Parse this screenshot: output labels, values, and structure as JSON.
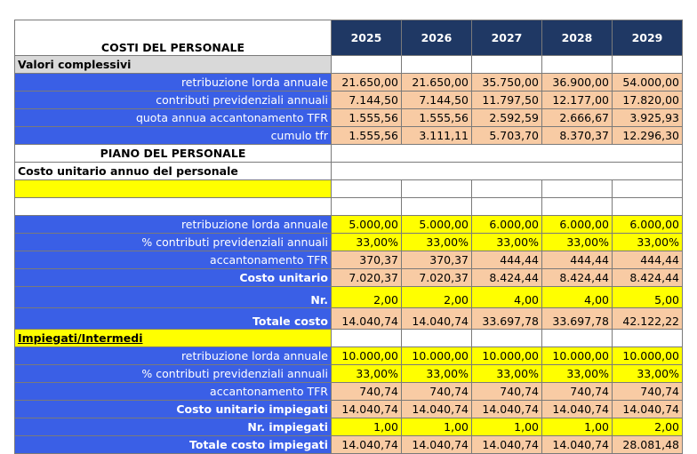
{
  "header": {
    "title": "COSTI DEL PERSONALE",
    "years": [
      "2025",
      "2026",
      "2027",
      "2028",
      "2029"
    ]
  },
  "rows": [
    {
      "kind": "section",
      "label": "Valori complessivi"
    },
    {
      "kind": "data",
      "label": "retribuzione lorda annuale",
      "fill": "peach",
      "values": [
        "21.650,00",
        "21.650,00",
        "35.750,00",
        "36.900,00",
        "54.000,00"
      ]
    },
    {
      "kind": "data",
      "label": "contributi previdenziali annuali",
      "fill": "peach",
      "values": [
        "7.144,50",
        "7.144,50",
        "11.797,50",
        "12.177,00",
        "17.820,00"
      ]
    },
    {
      "kind": "data",
      "label": "quota annua accantonamento TFR",
      "fill": "peach",
      "values": [
        "1.555,56",
        "1.555,56",
        "2.592,59",
        "2.666,67",
        "3.925,93"
      ]
    },
    {
      "kind": "data",
      "label": "cumulo tfr",
      "fill": "peach",
      "values": [
        "1.555,56",
        "3.111,11",
        "5.703,70",
        "8.370,37",
        "12.296,30"
      ]
    },
    {
      "kind": "plain-center",
      "label": "PIANO DEL PERSONALE"
    },
    {
      "kind": "plain-bold",
      "label": "Costo unitario annuo del personale"
    },
    {
      "kind": "yellowbar",
      "label": ""
    },
    {
      "kind": "blank"
    },
    {
      "kind": "data",
      "label": "retribuzione lorda annuale",
      "fill": "yel",
      "values": [
        "5.000,00",
        "5.000,00",
        "6.000,00",
        "6.000,00",
        "6.000,00"
      ]
    },
    {
      "kind": "data",
      "label": "% contributi previdenziali annuali",
      "fill": "yel",
      "values": [
        "33,00%",
        "33,00%",
        "33,00%",
        "33,00%",
        "33,00%"
      ]
    },
    {
      "kind": "data",
      "label": "accantonamento TFR",
      "fill": "peach",
      "values": [
        "370,37",
        "370,37",
        "444,44",
        "444,44",
        "444,44"
      ]
    },
    {
      "kind": "data",
      "label": "Costo unitario",
      "bold": true,
      "fill": "peach",
      "values": [
        "7.020,37",
        "7.020,37",
        "8.424,44",
        "8.424,44",
        "8.424,44"
      ]
    },
    {
      "kind": "data",
      "label": "Nr.",
      "bold": true,
      "tall": true,
      "fill": "yel",
      "values": [
        "2,00",
        "2,00",
        "4,00",
        "4,00",
        "5,00"
      ]
    },
    {
      "kind": "data",
      "label": "Totale costo",
      "bold": true,
      "tall": true,
      "fill": "peach",
      "values": [
        "14.040,74",
        "14.040,74",
        "33.697,78",
        "33.697,78",
        "42.122,22"
      ]
    },
    {
      "kind": "yellowsect",
      "label": "Impiegati/Intermedi"
    },
    {
      "kind": "data",
      "label": "retribuzione lorda annuale",
      "fill": "yel",
      "values": [
        "10.000,00",
        "10.000,00",
        "10.000,00",
        "10.000,00",
        "10.000,00"
      ]
    },
    {
      "kind": "data",
      "label": "% contributi previdenziali annuali",
      "fill": "yel",
      "values": [
        "33,00%",
        "33,00%",
        "33,00%",
        "33,00%",
        "33,00%"
      ]
    },
    {
      "kind": "data",
      "label": "accantonamento TFR",
      "fill": "peach",
      "values": [
        "740,74",
        "740,74",
        "740,74",
        "740,74",
        "740,74"
      ]
    },
    {
      "kind": "data",
      "label": "Costo unitario impiegati",
      "bold": true,
      "fill": "peach",
      "values": [
        "14.040,74",
        "14.040,74",
        "14.040,74",
        "14.040,74",
        "14.040,74"
      ]
    },
    {
      "kind": "data",
      "label": "Nr. impiegati",
      "bold": true,
      "fill": "yel",
      "values": [
        "1,00",
        "1,00",
        "1,00",
        "1,00",
        "2,00"
      ]
    },
    {
      "kind": "data",
      "label": "Totale costo impiegati",
      "bold": true,
      "fill": "peach",
      "values": [
        "14.040,74",
        "14.040,74",
        "14.040,74",
        "14.040,74",
        "28.081,48"
      ]
    }
  ],
  "colors": {
    "header_navy": "#1f3864",
    "label_blue": "#3a5fe6",
    "peach": "#f8cba4",
    "yellow": "#ffff00",
    "section_grey": "#d9d9d9"
  }
}
